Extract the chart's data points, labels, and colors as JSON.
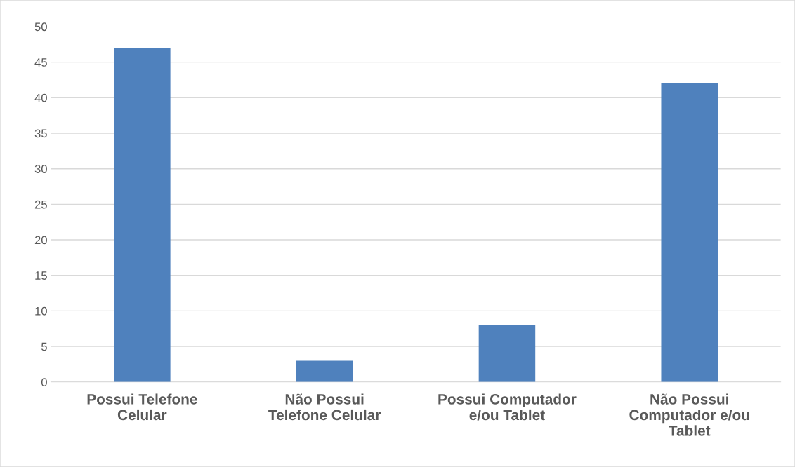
{
  "chart_data": {
    "type": "bar",
    "categories": [
      "Possui Telefone\nCelular",
      "Não Possui\nTelefone Celular",
      "Possui Computador\ne/ou Tablet",
      "Não Possui\nComputador e/ou\nTablet"
    ],
    "values": [
      47,
      3,
      8,
      42
    ],
    "color": "#4f81bd",
    "ylim": [
      0,
      50
    ],
    "yticks": [
      0,
      5,
      10,
      15,
      20,
      25,
      30,
      35,
      40,
      45,
      50
    ],
    "grid": "y"
  }
}
